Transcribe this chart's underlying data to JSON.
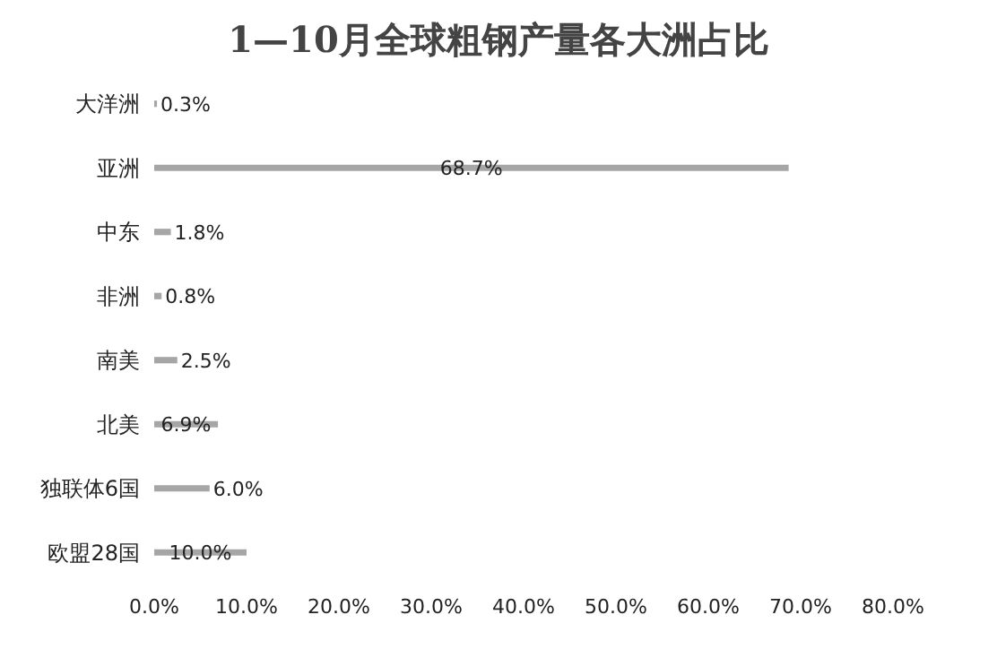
{
  "chart_data": {
    "type": "bar",
    "orientation": "horizontal",
    "title": "1—10月全球粗钢产量各大洲占比",
    "categories": [
      "大洋洲",
      "亚洲",
      "中东",
      "非洲",
      "南美",
      "北美",
      "独联体6国",
      "欧盟28国"
    ],
    "values": [
      0.3,
      68.7,
      1.8,
      0.8,
      2.5,
      6.9,
      6.0,
      10.0
    ],
    "value_labels": [
      "0.3%",
      "68.7%",
      "1.8%",
      "0.8%",
      "2.5%",
      "6.9%",
      "6.0%",
      "10.0%"
    ],
    "color": "#a6a6a6",
    "xlim": [
      0,
      80
    ],
    "xticks": [
      {
        "value": 0,
        "label": "0.0%"
      },
      {
        "value": 10,
        "label": "10.0%"
      },
      {
        "value": 20,
        "label": "20.0%"
      },
      {
        "value": 30,
        "label": "30.0%"
      },
      {
        "value": 40,
        "label": "40.0%"
      },
      {
        "value": 50,
        "label": "50.0%"
      },
      {
        "value": 60,
        "label": "60.0%"
      },
      {
        "value": 70,
        "label": "70.0%"
      },
      {
        "value": 80,
        "label": "80.0%"
      }
    ]
  }
}
